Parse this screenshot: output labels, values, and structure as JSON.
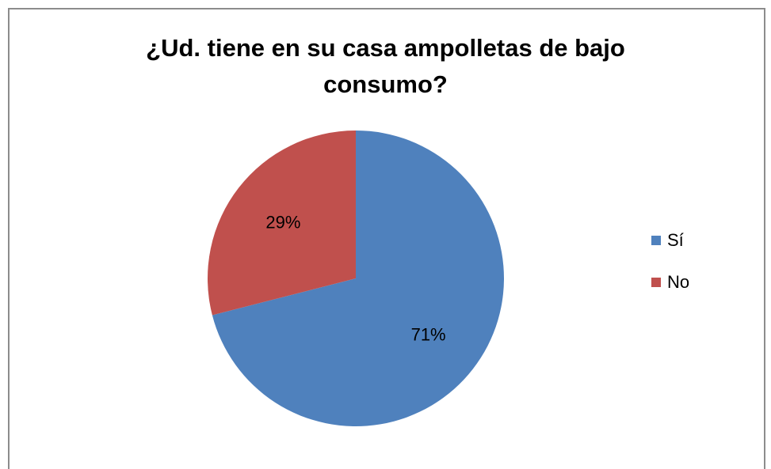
{
  "chart_data": {
    "type": "pie",
    "title_lines": [
      "¿Ud. tiene en su casa ampolletas de bajo",
      "consumo?"
    ],
    "categories": [
      "Sí",
      "No"
    ],
    "values": [
      71,
      29
    ],
    "data_labels": [
      "71%",
      "29%"
    ],
    "colors": [
      "#4f81bd",
      "#c0504d"
    ],
    "legend_position": "right"
  }
}
